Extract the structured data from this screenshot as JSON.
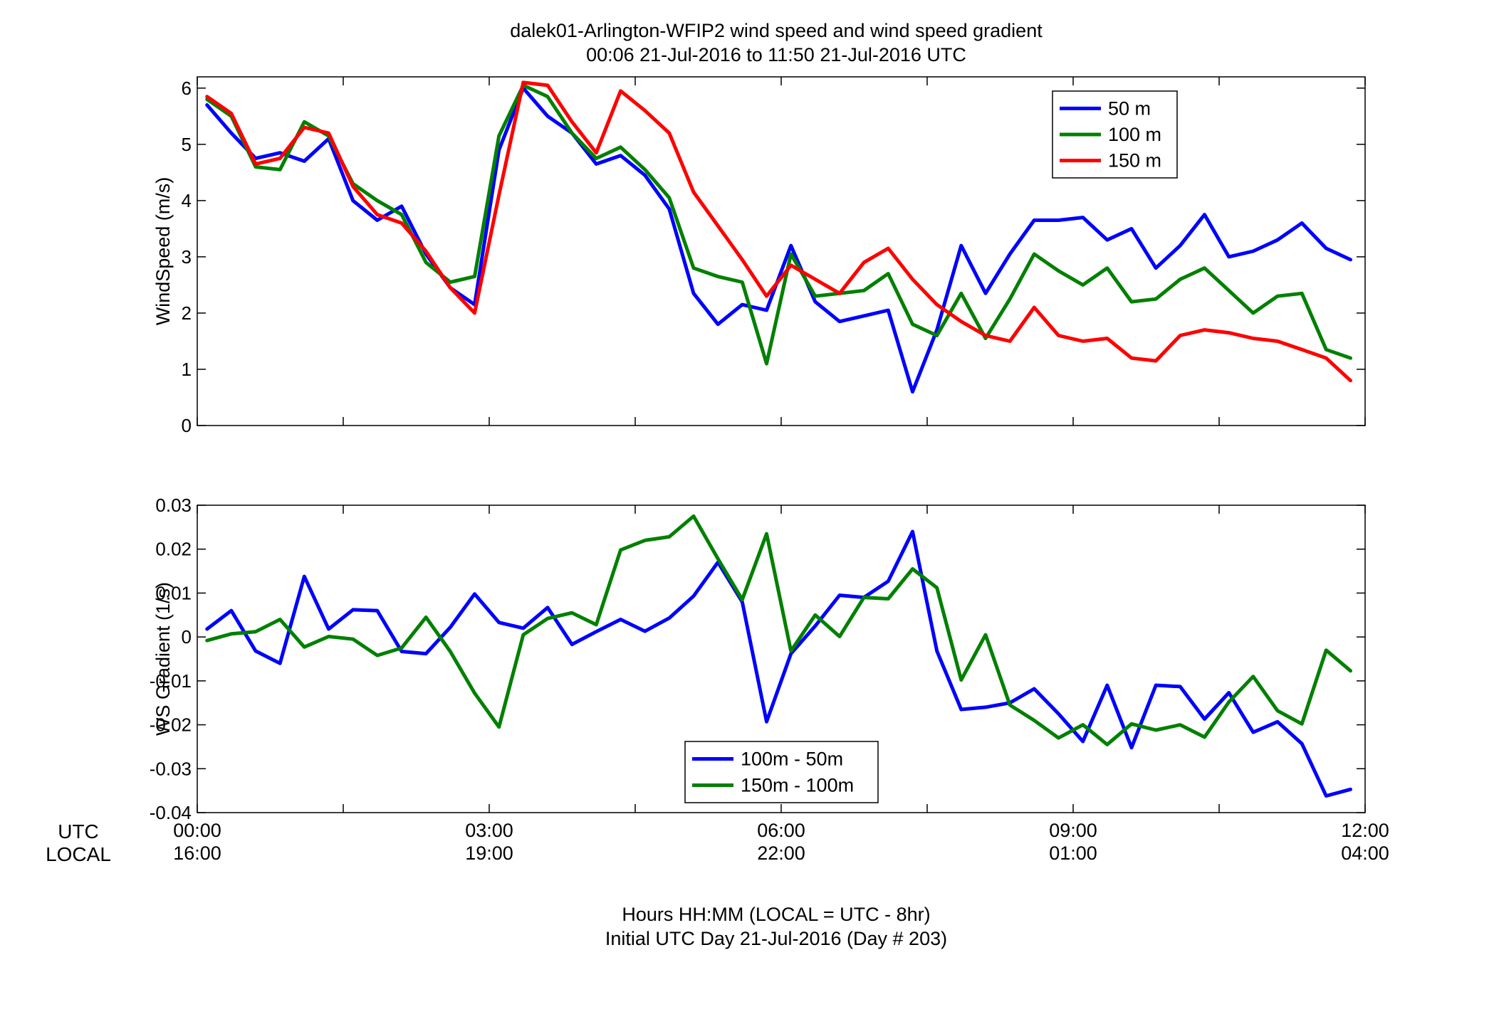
{
  "figure": {
    "title_line1": "dalek01-Arlington-WFIP2  wind speed and wind speed gradient",
    "title_line2": "00:06 21-Jul-2016 to 11:50 21-Jul-2016  UTC",
    "row_label_utc": "UTC",
    "row_label_local": "LOCAL",
    "footer_line1": "Hours HH:MM  (LOCAL = UTC - 8hr)",
    "footer_line2": "Initial UTC Day 21-Jul-2016 (Day # 203)",
    "x_ticks": [
      {
        "hour": 0,
        "utc": "00:00",
        "local": "16:00"
      },
      {
        "hour": 3,
        "utc": "03:00",
        "local": "19:00"
      },
      {
        "hour": 6,
        "utc": "06:00",
        "local": "22:00"
      },
      {
        "hour": 9,
        "utc": "09:00",
        "local": "01:00"
      },
      {
        "hour": 12,
        "utc": "12:00",
        "local": "04:00"
      }
    ]
  },
  "chart_data": [
    {
      "type": "line",
      "ylabel": "WindSpeed (m/s)",
      "xlim": [
        0,
        12
      ],
      "ylim": [
        0,
        6.2
      ],
      "yticks": [
        0,
        1,
        2,
        3,
        4,
        5,
        6
      ],
      "ytick_labels": [
        "0",
        "1",
        "2",
        "3",
        "4",
        "5",
        "6"
      ],
      "legend_position": "top-right",
      "grid": false,
      "x": [
        0.1,
        0.35,
        0.6,
        0.85,
        1.1,
        1.35,
        1.6,
        1.85,
        2.1,
        2.35,
        2.6,
        2.85,
        3.1,
        3.35,
        3.6,
        3.85,
        4.1,
        4.35,
        4.6,
        4.85,
        5.1,
        5.35,
        5.6,
        5.85,
        6.1,
        6.35,
        6.6,
        6.85,
        7.1,
        7.35,
        7.6,
        7.85,
        8.1,
        8.35,
        8.6,
        8.85,
        9.1,
        9.35,
        9.6,
        9.85,
        10.1,
        10.35,
        10.6,
        10.85,
        11.1,
        11.35,
        11.6,
        11.85
      ],
      "series": [
        {
          "name": "50 m",
          "color": "#0000ff",
          "values": [
            5.7,
            5.2,
            4.75,
            4.85,
            4.7,
            5.1,
            4.0,
            3.65,
            3.9,
            3.05,
            2.45,
            2.15,
            4.9,
            6.0,
            5.5,
            5.2,
            4.65,
            4.8,
            4.45,
            3.85,
            2.35,
            1.8,
            2.15,
            2.05,
            3.2,
            2.2,
            1.85,
            1.95,
            2.05,
            0.6,
            1.7,
            3.2,
            2.35,
            3.05,
            3.65,
            3.65,
            3.7,
            3.3,
            3.5,
            2.8,
            3.2,
            3.75,
            3.0,
            3.1,
            3.3,
            3.6,
            3.15,
            2.95
          ]
        },
        {
          "name": "100 m",
          "color": "#008000",
          "values": [
            5.8,
            5.5,
            4.6,
            4.55,
            5.4,
            5.15,
            4.3,
            4.0,
            3.75,
            2.9,
            2.55,
            2.65,
            5.15,
            6.05,
            5.85,
            5.2,
            4.75,
            4.95,
            4.55,
            4.05,
            2.8,
            2.65,
            2.55,
            1.1,
            3.05,
            2.3,
            2.35,
            2.4,
            2.7,
            1.8,
            1.6,
            2.35,
            1.55,
            2.25,
            3.05,
            2.75,
            2.5,
            2.8,
            2.2,
            2.25,
            2.6,
            2.8,
            2.4,
            2.0,
            2.3,
            2.35,
            1.35,
            1.2
          ]
        },
        {
          "name": "150 m",
          "color": "#ff0000",
          "values": [
            5.85,
            5.55,
            4.65,
            4.75,
            5.3,
            5.2,
            4.25,
            3.75,
            3.6,
            3.1,
            2.45,
            2.0,
            4.1,
            6.1,
            6.05,
            5.4,
            4.85,
            5.95,
            5.6,
            5.2,
            4.15,
            3.55,
            2.95,
            2.3,
            2.85,
            2.6,
            2.35,
            2.9,
            3.15,
            2.6,
            2.15,
            1.85,
            1.6,
            1.5,
            2.1,
            1.6,
            1.5,
            1.55,
            1.2,
            1.15,
            1.6,
            1.7,
            1.65,
            1.55,
            1.5,
            1.35,
            1.2,
            0.8
          ]
        }
      ]
    },
    {
      "type": "line",
      "ylabel": "WS Gradient (1/s)",
      "xlim": [
        0,
        12
      ],
      "ylim": [
        -0.04,
        0.03
      ],
      "yticks": [
        -0.04,
        -0.03,
        -0.02,
        -0.01,
        0,
        0.01,
        0.02,
        0.03
      ],
      "ytick_labels": [
        "-0.04",
        "-0.03",
        "-0.02",
        "-0.01",
        "0",
        "0.01",
        "0.02",
        "0.03"
      ],
      "legend_position": "bottom-center",
      "grid": false,
      "x": [
        0.1,
        0.35,
        0.6,
        0.85,
        1.1,
        1.35,
        1.6,
        1.85,
        2.1,
        2.35,
        2.6,
        2.85,
        3.1,
        3.35,
        3.6,
        3.85,
        4.1,
        4.35,
        4.6,
        4.85,
        5.1,
        5.35,
        5.6,
        5.85,
        6.1,
        6.35,
        6.6,
        6.85,
        7.1,
        7.35,
        7.6,
        7.85,
        8.1,
        8.35,
        8.6,
        8.85,
        9.1,
        9.35,
        9.6,
        9.85,
        10.1,
        10.35,
        10.6,
        10.85,
        11.1,
        11.35,
        11.6,
        11.85
      ],
      "series": [
        {
          "name": "100m - 50m",
          "color": "#0000ff",
          "values": [
            0.0018,
            0.006,
            -0.0032,
            -0.006,
            0.0138,
            0.0018,
            0.0062,
            0.006,
            -0.0033,
            -0.0038,
            0.0022,
            0.0098,
            0.0033,
            0.002,
            0.0067,
            -0.0017,
            0.0012,
            0.004,
            0.0013,
            0.0043,
            0.0093,
            0.017,
            0.008,
            -0.0193,
            -0.0038,
            0.0025,
            0.0095,
            0.009,
            0.0127,
            0.024,
            -0.0032,
            -0.0165,
            -0.016,
            -0.015,
            -0.0118,
            -0.0175,
            -0.0238,
            -0.011,
            -0.0252,
            -0.011,
            -0.0113,
            -0.0187,
            -0.0127,
            -0.0217,
            -0.0193,
            -0.0243,
            -0.0362,
            -0.0347
          ]
        },
        {
          "name": "150m - 100m",
          "color": "#008000",
          "values": [
            -0.0008,
            0.0007,
            0.0012,
            0.004,
            -0.0023,
            0.0001,
            -0.0005,
            -0.0042,
            -0.0025,
            0.0045,
            -0.0033,
            -0.0128,
            -0.0205,
            0.0005,
            0.0042,
            0.0055,
            0.0028,
            0.0198,
            0.022,
            0.0228,
            0.0275,
            0.0178,
            0.0085,
            0.0235,
            -0.0032,
            0.005,
            0.0001,
            0.009,
            0.0087,
            0.0155,
            0.0112,
            -0.0098,
            0.0005,
            -0.0155,
            -0.019,
            -0.023,
            -0.02,
            -0.0245,
            -0.0198,
            -0.0212,
            -0.02,
            -0.0228,
            -0.0148,
            -0.009,
            -0.0168,
            -0.0198,
            -0.003,
            -0.0077
          ]
        }
      ]
    }
  ]
}
